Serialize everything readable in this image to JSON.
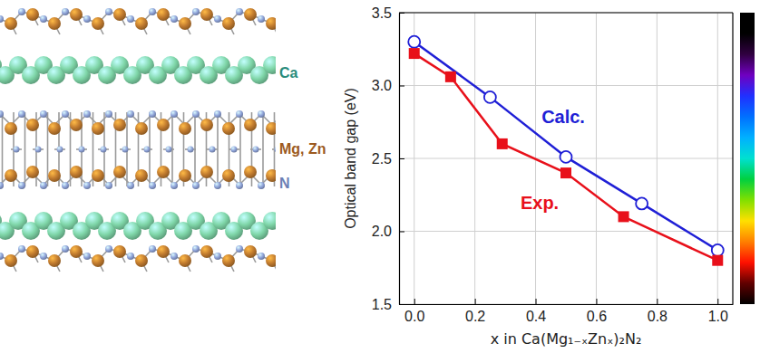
{
  "chart_data": {
    "type": "line",
    "x_label": "x in Ca(Mg₁₋ₓZnₓ)₂N₂",
    "y_label": "Optical band gap (eV)",
    "xlim": [
      -0.05,
      1.05
    ],
    "xticks": [
      {
        "value": 0,
        "label": "0.0"
      },
      0.2,
      0.4,
      0.6,
      0.8,
      {
        "value": 1,
        "label": "1.0"
      }
    ],
    "ylim": [
      1.5,
      3.5
    ],
    "yticks": [
      1.5,
      {
        "value": 2,
        "label": "2.0"
      },
      2.5,
      {
        "value": 3,
        "label": "3.0"
      },
      3.5
    ],
    "grid": true,
    "series": [
      {
        "name": "Calc.",
        "color": "#1f1fd6",
        "marker": "open-circle",
        "line_style": "solid",
        "x": [
          0,
          0.25,
          0.5,
          0.75,
          1
        ],
        "values": [
          3.3,
          2.92,
          2.51,
          2.19,
          1.87
        ]
      },
      {
        "name": "Exp.",
        "color": "#e8101a",
        "marker": "square",
        "line_style": "solid",
        "x": [
          0,
          0.12,
          0.29,
          0.5,
          0.69,
          1
        ],
        "values": [
          3.22,
          3.06,
          2.6,
          2.4,
          2.1,
          1.8
        ]
      }
    ],
    "color_bar": {
      "colors": [
        "#000000",
        "#000000",
        "#300040",
        "#7000c0",
        "#2030ff",
        "#0070ff",
        "#00b0ff",
        "#00e0d0",
        "#00d040",
        "#80e000",
        "#ffe000",
        "#ff8000",
        "#ff1000",
        "#600000",
        "#000000"
      ]
    }
  },
  "diagram": {
    "labels": [
      {
        "text": "Ca",
        "color": "#2a8c7c"
      },
      {
        "text": "Mg, Zn",
        "color": "#9c5a1e"
      },
      {
        "text": "N",
        "color": "#6b7fb5"
      }
    ]
  }
}
